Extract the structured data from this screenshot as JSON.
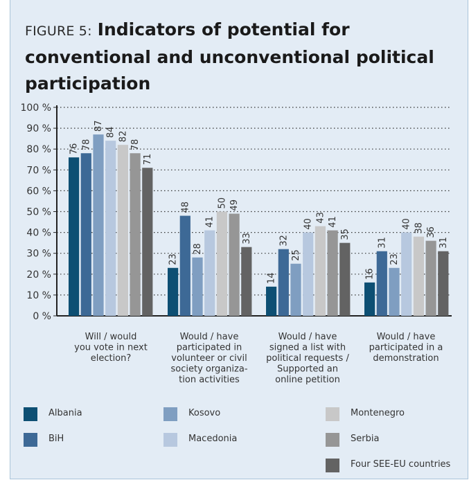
{
  "title": {
    "label": "FIGURE 5:",
    "main": "Indicators of potential for conventional and unconventional political participation"
  },
  "chart_data": {
    "type": "bar",
    "title": "Indicators of potential for conventional and unconventional political participation",
    "ylim": [
      0,
      100
    ],
    "y_ticks": [
      "0 %",
      "10 %",
      "20 %",
      "30 %",
      "40 %",
      "50 %",
      "60 %",
      "70 %",
      "80 %",
      "90 %",
      "100 %"
    ],
    "grid": "dotted horizontal",
    "legend_position": "bottom",
    "categories": [
      [
        "Will / would",
        "you vote in next",
        "election?"
      ],
      [
        "Would / have",
        "participated in",
        "volunteer or civil",
        "society organiza-",
        "tion activities"
      ],
      [
        "Would / have",
        "signed a list with",
        "political requests /",
        "Supported an",
        "online petition"
      ],
      [
        "Would / have",
        "participated in a",
        "demonstration"
      ]
    ],
    "series": [
      {
        "name": "Albania",
        "color": "#0d4f73",
        "values": [
          76,
          23,
          14,
          16
        ]
      },
      {
        "name": "BiH",
        "color": "#3d6996",
        "values": [
          78,
          48,
          32,
          31
        ]
      },
      {
        "name": "Kosovo",
        "color": "#7f9ec1",
        "values": [
          87,
          28,
          25,
          23
        ]
      },
      {
        "name": "Macedonia",
        "color": "#b7c8df",
        "values": [
          84,
          41,
          40,
          40
        ]
      },
      {
        "name": "Montenegro",
        "color": "#c8c8c8",
        "values": [
          82,
          50,
          43,
          38
        ]
      },
      {
        "name": "Serbia",
        "color": "#969696",
        "values": [
          78,
          49,
          41,
          36
        ]
      },
      {
        "name": "Four SEE-EU countries",
        "color": "#636363",
        "values": [
          71,
          33,
          35,
          31
        ]
      }
    ]
  }
}
